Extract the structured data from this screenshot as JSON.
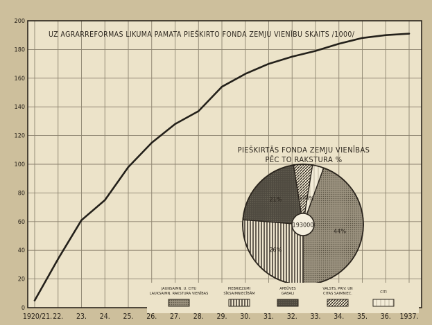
{
  "chart_data": [
    {
      "type": "line",
      "title": "UZ AGRARREFORMAS LIKUMA PAMATA PIEŠKIRTO FONDA ZEMJU VIENĪBU SKAITS /1000/",
      "x_tick_labels": [
        "1920/21.",
        "22.",
        "23.",
        "24.",
        "25.",
        "26.",
        "27.",
        "28.",
        "29.",
        "30.",
        "31.",
        "32.",
        "33.",
        "34.",
        "35.",
        "36.",
        "1937."
      ],
      "y_tick_labels": [
        "0",
        "20",
        "40",
        "60",
        "80",
        "100",
        "120",
        "140",
        "160",
        "180",
        "200"
      ],
      "ylim": [
        0,
        200
      ],
      "grid": true,
      "series": [
        {
          "values": [
            5,
            34,
            61,
            75,
            98,
            115,
            128,
            137,
            154,
            163,
            170,
            175,
            179,
            184,
            188,
            190,
            191
          ]
        }
      ]
    },
    {
      "type": "pie",
      "title_line1": "PIEŠKIRTĀS FONDA ZEMJU VIENĪBAS",
      "title_line2": "PĒC TO RAKSTURA %",
      "center_label": "193000",
      "legend_placement": "bottom",
      "slices": [
        {
          "label": "JAUNSAIMN. U. CITU LAUKSAIMN. RAKSTURA VIENĪBAS",
          "value": 44,
          "value_label": "44%",
          "pattern": "dense-dots"
        },
        {
          "label": "PIEBRIEZUMI SĪKSAIMNIECĪBĀM",
          "value": 26,
          "value_label": "26%",
          "pattern": "vertical-lines"
        },
        {
          "label": "APBŪVES GABALI",
          "value": 21,
          "value_label": "21%",
          "pattern": "dark-fill"
        },
        {
          "label": "VALSTS, PRIV. UN CITAS SAIMNIEC.",
          "value": 5,
          "value_label": "5%",
          "pattern": "diagonal-lines"
        },
        {
          "label": "CITI",
          "value": 3,
          "value_label": "3%",
          "pattern": "white-vertical"
        }
      ]
    }
  ]
}
